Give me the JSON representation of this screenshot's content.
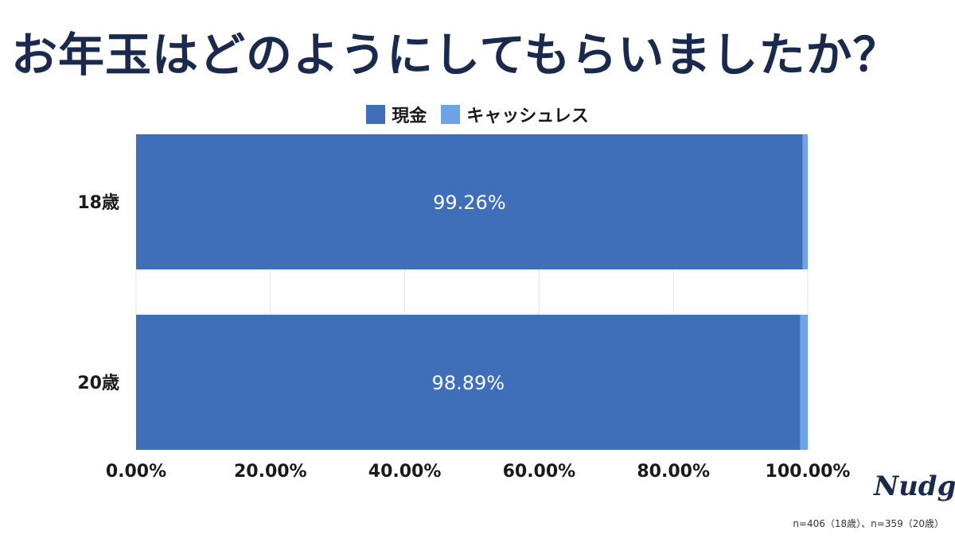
{
  "title": "お年玉はどのようにしてもらいましたか？",
  "legend": [
    {
      "label": "現金",
      "color": "#3e6fb8"
    },
    {
      "label": "キャッシュレス",
      "color": "#6fa3e6"
    }
  ],
  "logo_text": "Nudge",
  "footnote": "n=406（18歳）、n=359（20歳）",
  "chart_data": {
    "type": "bar",
    "orientation": "horizontal",
    "stacked": true,
    "categories": [
      "18歳",
      "20歳"
    ],
    "series": [
      {
        "name": "現金",
        "values": [
          99.26,
          98.89
        ],
        "color": "#3e6fb8",
        "labels": [
          "99.26%",
          "98.89%"
        ]
      },
      {
        "name": "キャッシュレス",
        "values": [
          0.74,
          1.11
        ],
        "color": "#6fa3e6"
      }
    ],
    "xlim": [
      0,
      100
    ],
    "xticks": [
      "0.00%",
      "20.00%",
      "40.00%",
      "60.00%",
      "80.00%",
      "100.00%"
    ],
    "grid": true,
    "legend_position": "top"
  }
}
